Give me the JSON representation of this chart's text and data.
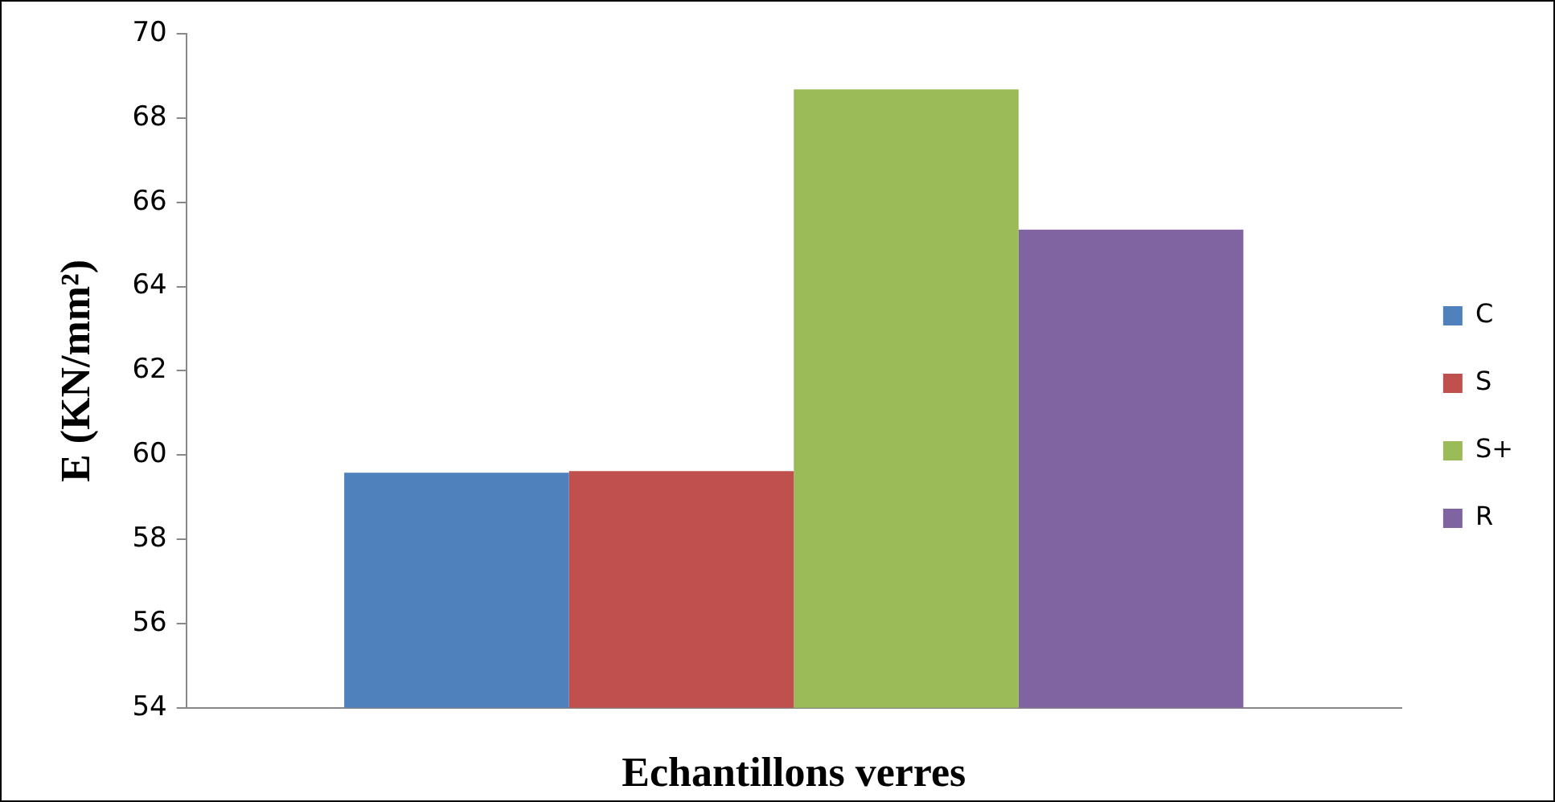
{
  "chart_data": {
    "type": "bar",
    "xlabel": "Echantillons verres",
    "ylabel": "E (KN/mm²)",
    "categories": [
      null
    ],
    "series": [
      {
        "name": "C",
        "color": "#4f81bd",
        "values": [
          59.58
        ]
      },
      {
        "name": "S",
        "color": "#c0504d",
        "values": [
          59.62
        ]
      },
      {
        "name": "S+",
        "color": "#9bbb59",
        "values": [
          68.68
        ]
      },
      {
        "name": "R",
        "color": "#8064a2",
        "values": [
          65.35
        ]
      }
    ],
    "ylim": [
      54,
      70
    ],
    "yticks": [
      54,
      56,
      58,
      60,
      62,
      64,
      66,
      68,
      70
    ],
    "grid": false,
    "legend": "right"
  }
}
